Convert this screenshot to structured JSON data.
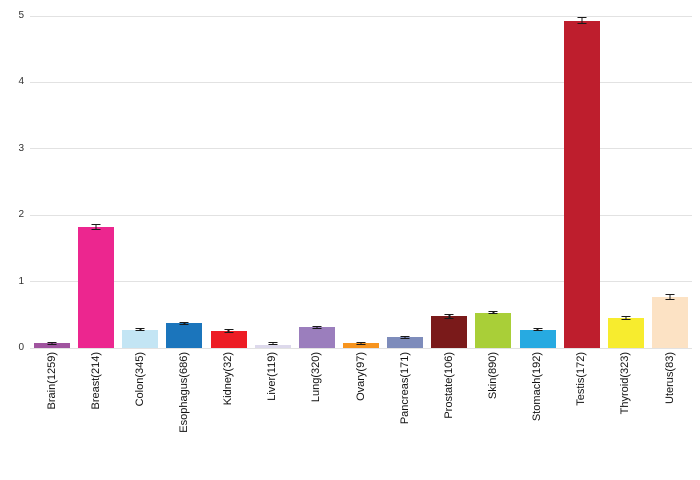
{
  "chart_data": {
    "type": "bar",
    "title": "",
    "xlabel": "",
    "ylabel": "",
    "ylim": [
      0,
      5
    ],
    "yticks": [
      0,
      1,
      2,
      3,
      4,
      5
    ],
    "grid": true,
    "legend": "none",
    "categories": [
      "Brain(1259)",
      "Breast(214)",
      "Colon(345)",
      "Esophagus(686)",
      "Kidney(32)",
      "Liver(119)",
      "Lung(320)",
      "Ovary(97)",
      "Pancreas(171)",
      "Prostate(106)",
      "Skin(890)",
      "Stomach(192)",
      "Testis(172)",
      "Thyroid(323)",
      "Uterus(83)"
    ],
    "values": [
      0.07,
      1.82,
      0.27,
      0.37,
      0.25,
      0.05,
      0.31,
      0.07,
      0.16,
      0.48,
      0.53,
      0.27,
      4.93,
      0.45,
      0.77
    ],
    "errors": [
      0.02,
      0.05,
      0.02,
      0.02,
      0.03,
      0.01,
      0.02,
      0.02,
      0.02,
      0.04,
      0.02,
      0.02,
      0.05,
      0.03,
      0.05
    ],
    "bar_colors": [
      "#A0549F",
      "#EC268F",
      "#C3E5F4",
      "#1B75BC",
      "#ED1C24",
      "#DDD9EC",
      "#9B7EBD",
      "#F7941E",
      "#7E8CBB",
      "#7A1A1A",
      "#A9CF38",
      "#27AAE1",
      "#BE1E2D",
      "#F7EC2E",
      "#FCE2C4"
    ],
    "gridline_color": "#e2e2e2",
    "error_bar_color": "#1a1a1a"
  }
}
